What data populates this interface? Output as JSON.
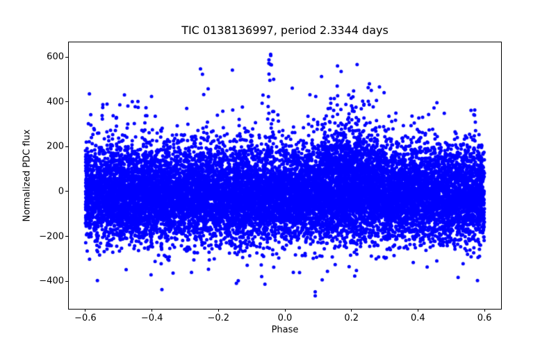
{
  "chart_data": {
    "type": "scatter",
    "title": "TIC 0138136997, period 2.3344 days",
    "xlabel": "Phase",
    "ylabel": "Normalized PDC flux",
    "xlim": [
      -0.65,
      0.65
    ],
    "ylim": [
      -523,
      665
    ],
    "x_data_range": [
      -0.6,
      0.6
    ],
    "grid": false,
    "legend": null,
    "background_color": "#ffffff",
    "axis_color": "#000000",
    "marker": {
      "color": "#0000ff",
      "radius_px": 2.5
    },
    "xticks": [
      {
        "value": -0.6,
        "label": "−0.6"
      },
      {
        "value": -0.4,
        "label": "−0.4"
      },
      {
        "value": -0.2,
        "label": "−0.2"
      },
      {
        "value": 0.0,
        "label": "0.0"
      },
      {
        "value": 0.2,
        "label": "0.2"
      },
      {
        "value": 0.4,
        "label": "0.4"
      },
      {
        "value": 0.6,
        "label": "0.6"
      }
    ],
    "yticks": [
      {
        "value": 600,
        "label": "600"
      },
      {
        "value": 400,
        "label": "400"
      },
      {
        "value": 200,
        "label": "200"
      },
      {
        "value": 0,
        "label": "0"
      },
      {
        "value": -200,
        "label": "−200"
      },
      {
        "value": -400,
        "label": "−400"
      }
    ],
    "distribution": {
      "description": "Phase-folded light curve: dense noise band ~-200..+200 around 0, heavier upper tail, flare spike near phase -0.043 up to ~610, density bump near phase 0.2, lone outliers to -465.",
      "seed": 1138,
      "components": [
        {
          "name": "core-band",
          "n": 13000,
          "x": {
            "dist": "uniform",
            "min": -0.6,
            "max": 0.6
          },
          "y": {
            "dist": "normal",
            "mean": -18,
            "sd": 92
          }
        },
        {
          "name": "upper-scatter",
          "n": 680,
          "x": {
            "dist": "uniform",
            "min": -0.6,
            "max": 0.6
          },
          "y": {
            "dist": "exp-above",
            "base": 130,
            "scale": 72,
            "cap": 445
          }
        },
        {
          "name": "lower-scatter",
          "n": 300,
          "x": {
            "dist": "uniform",
            "min": -0.6,
            "max": 0.6
          },
          "y": {
            "dist": "exp-below",
            "base": -165,
            "scale": 62,
            "cap": -430
          }
        },
        {
          "name": "flare-bump-phase-0.2",
          "n": 550,
          "x": {
            "dist": "normal",
            "mean": 0.19,
            "sd": 0.055,
            "clampMin": -0.6,
            "clampMax": 0.6
          },
          "y": {
            "dist": "exp-above",
            "base": 80,
            "scale": 100,
            "cap": 470
          }
        },
        {
          "name": "flare-spike-phase--0.04",
          "n": 22,
          "x": {
            "dist": "normal",
            "mean": -0.043,
            "sd": 0.0045,
            "clampMin": -0.6,
            "clampMax": 0.6
          },
          "y": {
            "dist": "uniform",
            "min": 170,
            "max": 610
          }
        }
      ]
    },
    "notable_points": [
      [
        -0.564,
        -397
      ],
      [
        -0.548,
        374
      ],
      [
        -0.535,
        390
      ],
      [
        -0.37,
        -437
      ],
      [
        -0.254,
        547
      ],
      [
        -0.248,
        523
      ],
      [
        -0.231,
        458
      ],
      [
        -0.158,
        541
      ],
      [
        -0.146,
        -409
      ],
      [
        -0.066,
        430
      ],
      [
        -0.043,
        612
      ],
      [
        0.022,
        461
      ],
      [
        0.091,
        -447
      ],
      [
        0.091,
        -465
      ],
      [
        0.11,
        513
      ],
      [
        0.112,
        -394
      ],
      [
        0.158,
        560
      ],
      [
        0.169,
        535
      ],
      [
        0.217,
        566
      ],
      [
        0.254,
        480
      ],
      [
        0.457,
        396
      ],
      [
        0.579,
        -397
      ]
    ]
  }
}
